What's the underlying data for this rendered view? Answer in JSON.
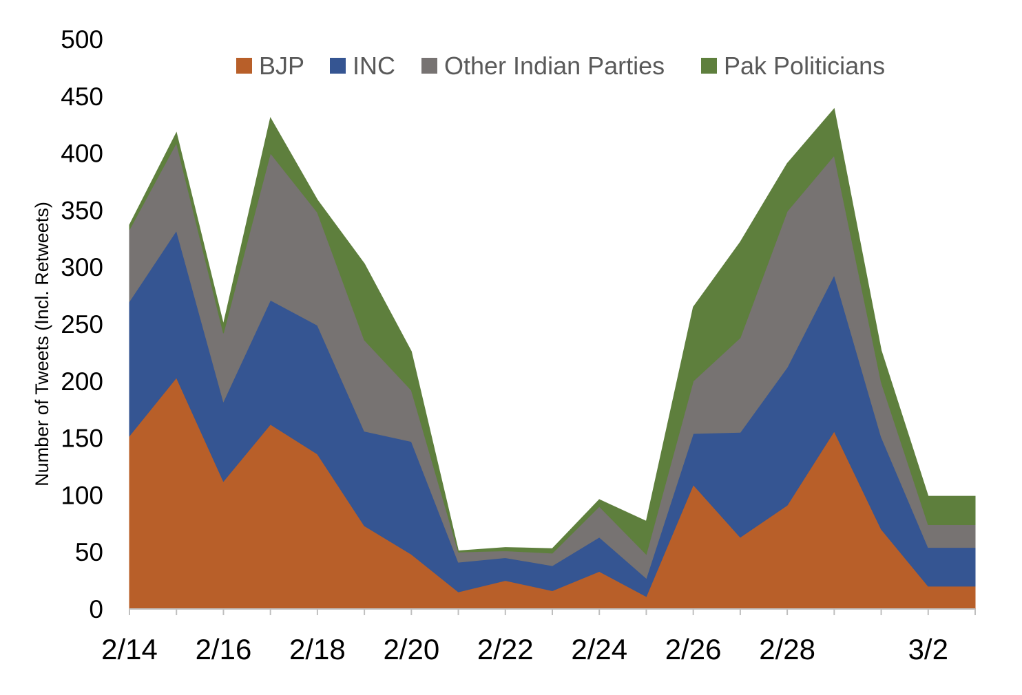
{
  "chart_data": {
    "type": "area",
    "stacked": true,
    "title": "",
    "xlabel": "",
    "ylabel": "Number of Tweets (Incl. Retweets)",
    "ylim": [
      0,
      500
    ],
    "yticks": [
      0,
      50,
      100,
      150,
      200,
      250,
      300,
      350,
      400,
      450,
      500
    ],
    "x": [
      "2/14",
      "2/15",
      "2/16",
      "2/17",
      "2/18",
      "2/19",
      "2/20",
      "2/21",
      "2/22",
      "2/23",
      "2/24",
      "2/25",
      "2/26",
      "2/27",
      "2/28",
      "2/29",
      "3/1",
      "3/2",
      "3/3"
    ],
    "x_tick_labels": [
      "2/14",
      "2/16",
      "2/18",
      "2/20",
      "2/22",
      "2/24",
      "2/26",
      "2/28",
      "3/2"
    ],
    "grid": false,
    "legend_position": "top",
    "series": [
      {
        "name": "BJP",
        "color": "#B85F29",
        "values": [
          152,
          203,
          112,
          162,
          136,
          73,
          48,
          15,
          25,
          16,
          33,
          11,
          109,
          63,
          91,
          156,
          70,
          20,
          20
        ]
      },
      {
        "name": "INC",
        "color": "#355592",
        "values": [
          118,
          129,
          70,
          109,
          113,
          83,
          99,
          26,
          20,
          22,
          30,
          16,
          45,
          92,
          121,
          137,
          81,
          34,
          34
        ]
      },
      {
        "name": "Other Indian Parties",
        "color": "#777372",
        "values": [
          63,
          77,
          60,
          129,
          99,
          80,
          45,
          9,
          6,
          11,
          27,
          21,
          46,
          83,
          137,
          105,
          48,
          20,
          20
        ]
      },
      {
        "name": "Pak Politicians",
        "color": "#5E7F3D",
        "values": [
          4,
          9,
          8,
          31,
          11,
          67,
          34,
          1,
          3,
          4,
          6,
          29,
          65,
          84,
          42,
          41,
          28,
          25,
          25
        ]
      }
    ]
  }
}
